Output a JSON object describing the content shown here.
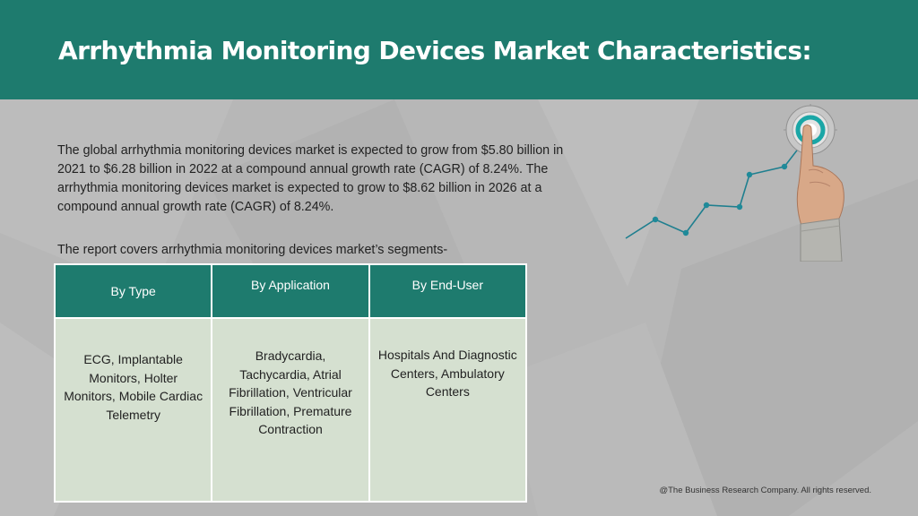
{
  "slide": {
    "title": "Arrhythmia Monitoring Devices Market Characteristics:",
    "intro": "The global arrhythmia monitoring devices market is expected to grow from $5.80 billion in 2021 to $6.28 billion in 2022 at a compound annual growth rate (CAGR) of 8.24%. The arrhythmia monitoring devices market is expected to grow to $8.62 billion in 2026 at a compound annual growth rate (CAGR) of 8.24%.",
    "segments_intro": "The report covers arrhythmia monitoring devices market’s segments-",
    "footer": "@The Business Research Company. All rights reserved."
  },
  "table": {
    "headers": [
      "By Type",
      "By Application",
      "By End-User"
    ],
    "cells": [
      "ECG, Implantable Monitors, Holter Monitors, Mobile Cardiac Telemetry",
      "Bradycardia, Tachycardia, Atrial Fibrillation, Ventricular Fibrillation, Premature Contraction",
      "Hospitals And Diagnostic Centers, Ambulatory Centers"
    ]
  },
  "graphic": {
    "icons": [
      "target-icon",
      "pointing-hand-icon",
      "growth-line-icon"
    ]
  },
  "colors": {
    "brand_teal": "#1e7b6e",
    "background_gray": "#b7b7b7",
    "table_cell_green": "#d5e0d0",
    "target_teal": "#1aa6a6"
  }
}
